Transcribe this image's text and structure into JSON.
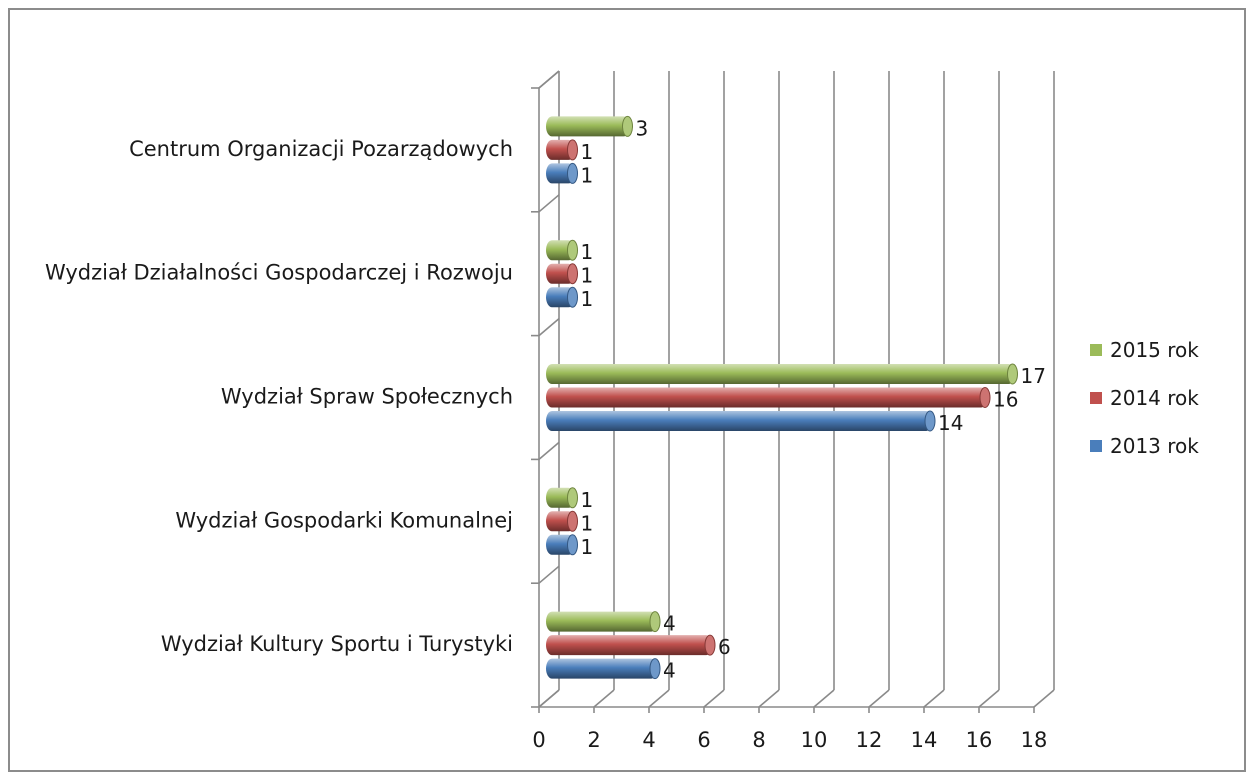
{
  "chart_data": {
    "type": "bar",
    "orientation": "horizontal",
    "title": "",
    "xlabel": "",
    "ylabel": "",
    "categories": [
      "Wydział Kultury Sportu i Turystyki",
      "Wydział Gospodarki Komunalnej",
      "Wydział Spraw Społecznych",
      "Wydział Działalności Gospodarczej i Rozwoju",
      "Centrum Organizacji Pozarządowych"
    ],
    "series": [
      {
        "name": "2013 rok",
        "color": "#4a7ebb",
        "values": [
          4,
          1,
          14,
          1,
          1
        ]
      },
      {
        "name": "2014 rok",
        "color": "#c0504d",
        "values": [
          6,
          1,
          16,
          1,
          1
        ]
      },
      {
        "name": "2015 rok",
        "color": "#9bbb59",
        "values": [
          4,
          1,
          17,
          1,
          3
        ]
      }
    ],
    "xlim": [
      0,
      18
    ],
    "xticks": [
      0,
      2,
      4,
      6,
      8,
      10,
      12,
      14,
      16,
      18
    ],
    "grid": true,
    "legend_position": "right",
    "style": "3d-cylinder"
  }
}
